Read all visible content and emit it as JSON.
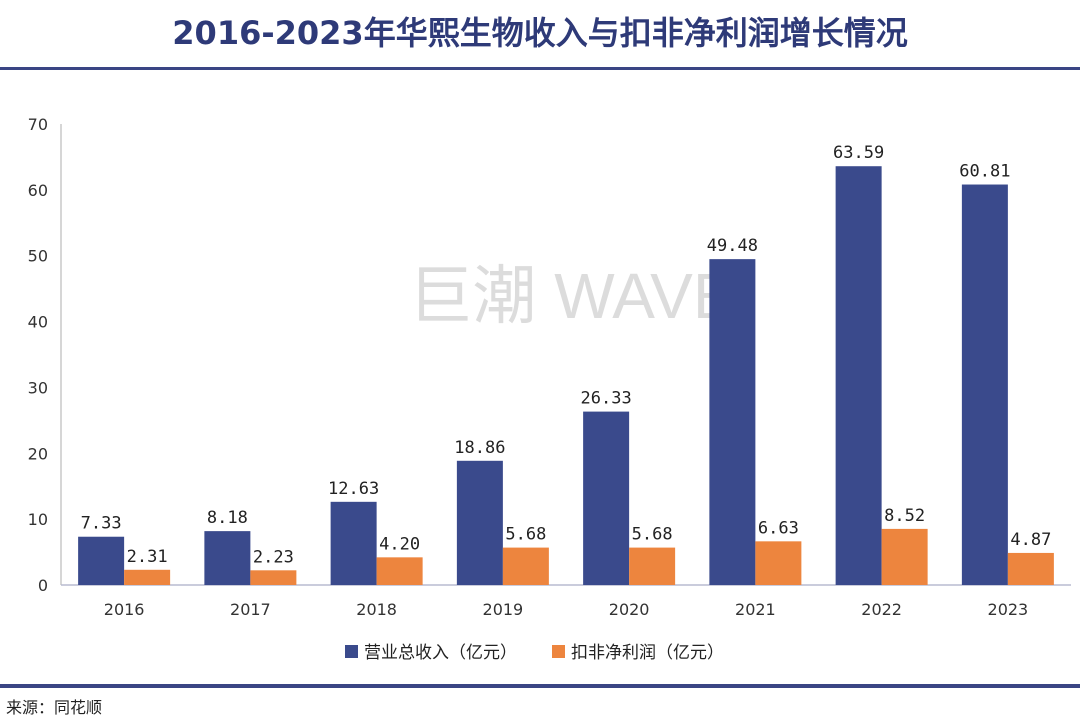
{
  "chart_data": {
    "type": "bar",
    "title": "2016-2023年华熙生物收入与扣非净利润增长情况",
    "categories": [
      "2016",
      "2017",
      "2018",
      "2019",
      "2020",
      "2021",
      "2022",
      "2023"
    ],
    "series": [
      {
        "name": "营业总收入（亿元）",
        "color": "#3a4a8c",
        "values": [
          7.33,
          8.18,
          12.63,
          18.86,
          26.33,
          49.48,
          63.59,
          60.81
        ],
        "labels": [
          "7.33",
          "8.18",
          "12.63",
          "18.86",
          "26.33",
          "49.48",
          "63.59",
          "60.81"
        ]
      },
      {
        "name": "扣非净利润（亿元）",
        "color": "#ed853e",
        "values": [
          2.31,
          2.23,
          4.2,
          5.68,
          5.68,
          6.63,
          8.52,
          4.87
        ],
        "labels": [
          "2.31",
          "2.23",
          "4.20",
          "5.68",
          "5.68",
          "6.63",
          "8.52",
          "4.87"
        ]
      }
    ],
    "ylim": [
      0,
      70
    ],
    "yticks": [
      "0",
      "10",
      "20",
      "30",
      "40",
      "50",
      "60",
      "70"
    ],
    "grid": false,
    "legend": "bottom"
  },
  "watermark": "巨潮 WAVE",
  "source": "来源：同花顺"
}
